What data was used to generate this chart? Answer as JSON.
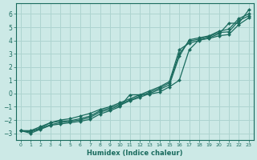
{
  "title": "",
  "xlabel": "Humidex (Indice chaleur)",
  "ylabel": "",
  "xlim": [
    -0.5,
    23.5
  ],
  "ylim": [
    -3.5,
    6.8
  ],
  "xticks": [
    0,
    1,
    2,
    3,
    4,
    5,
    6,
    7,
    8,
    9,
    10,
    11,
    12,
    13,
    14,
    15,
    16,
    17,
    18,
    19,
    20,
    21,
    22,
    23
  ],
  "yticks": [
    -3,
    -2,
    -1,
    0,
    1,
    2,
    3,
    4,
    5,
    6
  ],
  "bg_color": "#cce9e6",
  "line_color": "#1a6b5e",
  "grid_color": "#aed4d0",
  "line1_x": [
    0,
    1,
    2,
    3,
    4,
    5,
    6,
    7,
    8,
    9,
    10,
    11,
    12,
    13,
    14,
    15,
    16,
    17,
    18,
    19,
    20,
    21,
    22,
    23
  ],
  "line1_y": [
    -2.8,
    -2.8,
    -2.5,
    -2.2,
    -2.0,
    -1.9,
    -1.7,
    -1.5,
    -1.2,
    -1.0,
    -0.7,
    -0.4,
    -0.1,
    0.2,
    0.5,
    0.9,
    3.3,
    3.8,
    4.0,
    4.2,
    4.5,
    5.3,
    5.3,
    6.3
  ],
  "line2_x": [
    0,
    1,
    2,
    3,
    4,
    5,
    6,
    7,
    8,
    9,
    10,
    11,
    12,
    13,
    14,
    15,
    16,
    17,
    18,
    19,
    20,
    21,
    22,
    23
  ],
  "line2_y": [
    -2.8,
    -2.85,
    -2.6,
    -2.2,
    -2.1,
    -2.05,
    -1.9,
    -1.7,
    -1.3,
    -1.1,
    -0.8,
    -0.5,
    -0.2,
    0.1,
    0.4,
    0.8,
    3.0,
    3.95,
    4.1,
    4.3,
    4.6,
    4.65,
    5.5,
    5.85
  ],
  "line3_x": [
    0,
    1,
    2,
    3,
    4,
    5,
    6,
    7,
    8,
    9,
    10,
    11,
    12,
    13,
    14,
    15,
    16,
    17,
    18,
    19,
    20,
    21,
    22,
    23
  ],
  "line3_y": [
    -2.8,
    -2.9,
    -2.65,
    -2.35,
    -2.2,
    -2.1,
    -2.0,
    -1.8,
    -1.4,
    -1.2,
    -0.9,
    -0.55,
    -0.3,
    0.0,
    0.3,
    0.65,
    2.8,
    4.05,
    4.2,
    4.35,
    4.7,
    4.85,
    5.65,
    6.0
  ],
  "line4_x": [
    0,
    1,
    2,
    3,
    4,
    5,
    6,
    7,
    8,
    9,
    10,
    11,
    12,
    13,
    14,
    15,
    16,
    17,
    18,
    19,
    20,
    21,
    22,
    23
  ],
  "line4_y": [
    -2.8,
    -3.0,
    -2.7,
    -2.4,
    -2.3,
    -2.2,
    -2.1,
    -1.95,
    -1.55,
    -1.3,
    -1.0,
    -0.1,
    -0.1,
    -0.05,
    0.1,
    0.5,
    1.0,
    3.3,
    4.05,
    4.15,
    4.35,
    4.45,
    5.2,
    5.7
  ]
}
